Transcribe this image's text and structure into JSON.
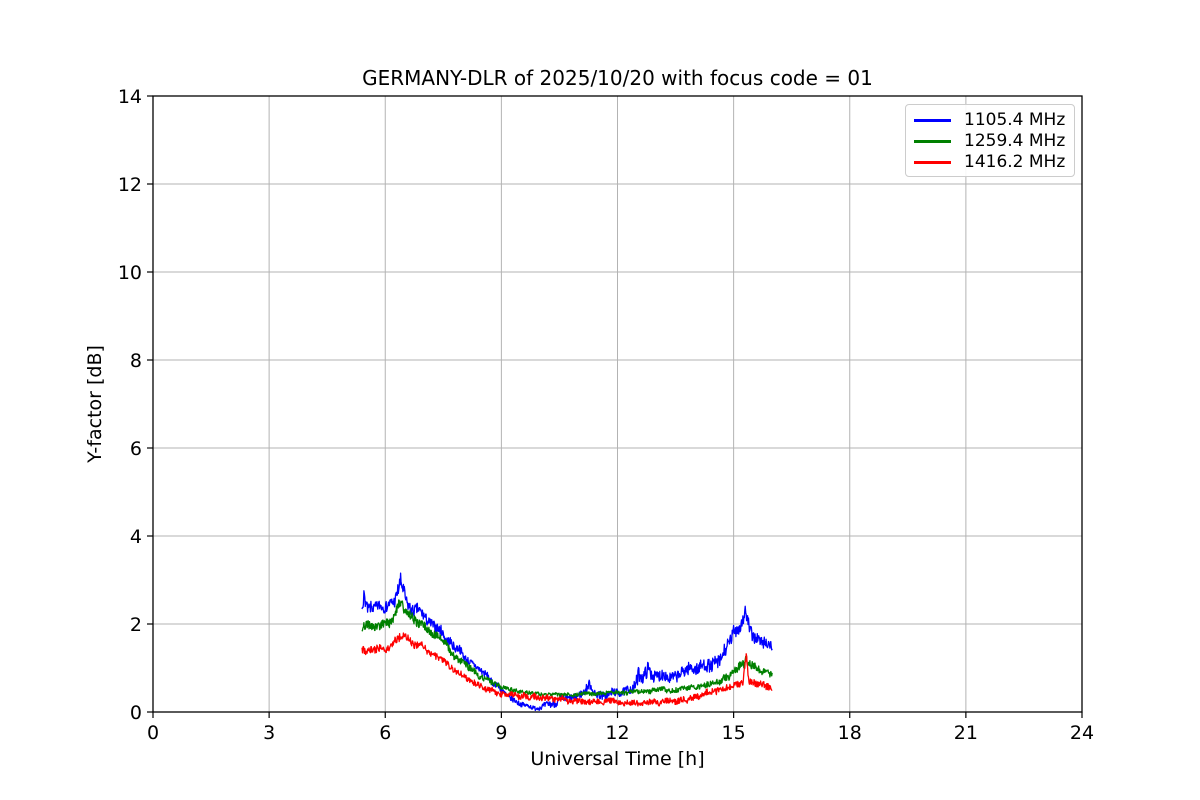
{
  "chart_data": {
    "type": "line",
    "title": "GERMANY-DLR of 2025/10/20 with focus code = 01",
    "xlabel": "Universal Time [h]",
    "ylabel": "Y-factor [dB]",
    "xlim": [
      0,
      24
    ],
    "ylim": [
      0,
      14
    ],
    "xticks": [
      0,
      3,
      6,
      9,
      12,
      15,
      18,
      21,
      24
    ],
    "yticks": [
      0,
      2,
      4,
      6,
      8,
      10,
      12,
      14
    ],
    "grid": true,
    "legend_position": "upper-right",
    "colors": {
      "background": "#ffffff",
      "grid": "#b3b3b3",
      "axis": "#000000",
      "legend_border": "#cccccc"
    },
    "keypoint_format": [
      "time_h",
      "y_factor_db",
      "noise_halfwidth_db"
    ],
    "series": [
      {
        "name": "1105.4 MHz",
        "color": "#0000ff",
        "keypoints": [
          [
            5.4,
            2.5,
            0.2
          ],
          [
            5.45,
            2.72,
            0.15
          ],
          [
            5.55,
            2.35,
            0.16
          ],
          [
            5.7,
            2.3,
            0.15
          ],
          [
            5.85,
            2.42,
            0.15
          ],
          [
            6.0,
            2.38,
            0.15
          ],
          [
            6.1,
            2.46,
            0.15
          ],
          [
            6.25,
            2.56,
            0.17
          ],
          [
            6.4,
            2.95,
            0.24
          ],
          [
            6.47,
            2.72,
            0.2
          ],
          [
            6.55,
            2.5,
            0.17
          ],
          [
            6.7,
            2.35,
            0.16
          ],
          [
            6.85,
            2.3,
            0.16
          ],
          [
            7.0,
            2.2,
            0.15
          ],
          [
            7.15,
            2.05,
            0.14
          ],
          [
            7.3,
            1.95,
            0.14
          ],
          [
            7.45,
            1.85,
            0.13
          ],
          [
            7.6,
            1.62,
            0.12
          ],
          [
            7.75,
            1.5,
            0.12
          ],
          [
            7.9,
            1.42,
            0.11
          ],
          [
            8.1,
            1.22,
            0.11
          ],
          [
            8.3,
            1.1,
            0.1
          ],
          [
            8.5,
            0.92,
            0.1
          ],
          [
            8.7,
            0.75,
            0.09
          ],
          [
            8.9,
            0.58,
            0.09
          ],
          [
            9.05,
            0.45,
            0.08
          ],
          [
            9.2,
            0.32,
            0.08
          ],
          [
            9.4,
            0.2,
            0.07
          ],
          [
            9.6,
            0.13,
            0.06
          ],
          [
            9.8,
            0.11,
            0.06
          ],
          [
            10.0,
            0.12,
            0.07
          ],
          [
            10.3,
            0.22,
            0.1
          ],
          [
            10.6,
            0.3,
            0.12
          ],
          [
            10.9,
            0.33,
            0.11
          ],
          [
            11.1,
            0.38,
            0.1
          ],
          [
            11.28,
            0.62,
            0.13
          ],
          [
            11.42,
            0.42,
            0.1
          ],
          [
            11.6,
            0.4,
            0.11
          ],
          [
            11.8,
            0.42,
            0.11
          ],
          [
            12.0,
            0.45,
            0.11
          ],
          [
            12.2,
            0.48,
            0.11
          ],
          [
            12.4,
            0.55,
            0.12
          ],
          [
            12.55,
            0.9,
            0.22
          ],
          [
            12.65,
            0.7,
            0.14
          ],
          [
            12.8,
            0.95,
            0.22
          ],
          [
            12.95,
            0.75,
            0.15
          ],
          [
            13.1,
            0.8,
            0.17
          ],
          [
            13.3,
            0.82,
            0.17
          ],
          [
            13.5,
            0.78,
            0.15
          ],
          [
            13.7,
            0.85,
            0.17
          ],
          [
            13.9,
            0.95,
            0.17
          ],
          [
            14.1,
            0.95,
            0.17
          ],
          [
            14.3,
            1.0,
            0.18
          ],
          [
            14.5,
            1.05,
            0.18
          ],
          [
            14.7,
            1.3,
            0.2
          ],
          [
            14.9,
            1.6,
            0.2
          ],
          [
            15.05,
            1.85,
            0.2
          ],
          [
            15.2,
            1.95,
            0.22
          ],
          [
            15.3,
            2.22,
            0.18
          ],
          [
            15.42,
            1.8,
            0.18
          ],
          [
            15.55,
            1.65,
            0.17
          ],
          [
            15.7,
            1.6,
            0.17
          ],
          [
            15.85,
            1.55,
            0.17
          ],
          [
            16.0,
            1.45,
            0.16
          ]
        ]
      },
      {
        "name": "1259.4 MHz",
        "color": "#008000",
        "keypoints": [
          [
            5.4,
            1.97,
            0.12
          ],
          [
            5.6,
            1.94,
            0.11
          ],
          [
            5.8,
            2.0,
            0.11
          ],
          [
            6.0,
            2.02,
            0.11
          ],
          [
            6.2,
            2.1,
            0.13
          ],
          [
            6.4,
            2.52,
            0.16
          ],
          [
            6.5,
            2.32,
            0.14
          ],
          [
            6.65,
            2.15,
            0.13
          ],
          [
            6.8,
            2.02,
            0.12
          ],
          [
            7.0,
            1.95,
            0.11
          ],
          [
            7.2,
            1.8,
            0.11
          ],
          [
            7.35,
            1.72,
            0.11
          ],
          [
            7.55,
            1.55,
            0.1
          ],
          [
            7.75,
            1.33,
            0.1
          ],
          [
            7.95,
            1.18,
            0.09
          ],
          [
            8.15,
            1.02,
            0.09
          ],
          [
            8.35,
            0.88,
            0.08
          ],
          [
            8.55,
            0.76,
            0.08
          ],
          [
            8.8,
            0.63,
            0.07
          ],
          [
            9.0,
            0.56,
            0.06
          ],
          [
            9.25,
            0.5,
            0.06
          ],
          [
            9.5,
            0.46,
            0.05
          ],
          [
            9.8,
            0.42,
            0.05
          ],
          [
            10.2,
            0.4,
            0.05
          ],
          [
            10.6,
            0.39,
            0.05
          ],
          [
            11.0,
            0.4,
            0.05
          ],
          [
            11.4,
            0.41,
            0.05
          ],
          [
            11.8,
            0.43,
            0.05
          ],
          [
            12.2,
            0.44,
            0.06
          ],
          [
            12.6,
            0.46,
            0.06
          ],
          [
            13.0,
            0.49,
            0.06
          ],
          [
            13.4,
            0.5,
            0.07
          ],
          [
            13.8,
            0.53,
            0.07
          ],
          [
            14.1,
            0.57,
            0.08
          ],
          [
            14.4,
            0.63,
            0.08
          ],
          [
            14.7,
            0.72,
            0.09
          ],
          [
            14.9,
            0.82,
            0.09
          ],
          [
            15.1,
            0.95,
            0.11
          ],
          [
            15.3,
            1.18,
            0.16
          ],
          [
            15.45,
            1.08,
            0.11
          ],
          [
            15.6,
            1.0,
            0.1
          ],
          [
            15.8,
            0.92,
            0.09
          ],
          [
            16.0,
            0.85,
            0.09
          ]
        ]
      },
      {
        "name": "1416.2 MHz",
        "color": "#ff0000",
        "keypoints": [
          [
            5.4,
            1.38,
            0.11
          ],
          [
            5.6,
            1.42,
            0.1
          ],
          [
            5.8,
            1.45,
            0.1
          ],
          [
            6.0,
            1.47,
            0.1
          ],
          [
            6.2,
            1.52,
            0.1
          ],
          [
            6.4,
            1.77,
            0.11
          ],
          [
            6.52,
            1.69,
            0.1
          ],
          [
            6.65,
            1.6,
            0.1
          ],
          [
            6.8,
            1.52,
            0.1
          ],
          [
            7.0,
            1.48,
            0.09
          ],
          [
            7.2,
            1.35,
            0.09
          ],
          [
            7.4,
            1.22,
            0.09
          ],
          [
            7.6,
            1.08,
            0.09
          ],
          [
            7.8,
            0.95,
            0.08
          ],
          [
            8.0,
            0.86,
            0.08
          ],
          [
            8.2,
            0.72,
            0.08
          ],
          [
            8.4,
            0.62,
            0.08
          ],
          [
            8.6,
            0.52,
            0.08
          ],
          [
            8.85,
            0.46,
            0.08
          ],
          [
            9.1,
            0.42,
            0.08
          ],
          [
            9.4,
            0.38,
            0.08
          ],
          [
            9.7,
            0.34,
            0.08
          ],
          [
            10.0,
            0.32,
            0.08
          ],
          [
            10.4,
            0.29,
            0.08
          ],
          [
            10.8,
            0.27,
            0.08
          ],
          [
            11.2,
            0.25,
            0.08
          ],
          [
            11.6,
            0.24,
            0.08
          ],
          [
            12.0,
            0.23,
            0.08
          ],
          [
            12.5,
            0.22,
            0.08
          ],
          [
            13.0,
            0.22,
            0.08
          ],
          [
            13.4,
            0.25,
            0.08
          ],
          [
            13.8,
            0.3,
            0.08
          ],
          [
            14.1,
            0.36,
            0.09
          ],
          [
            14.4,
            0.45,
            0.09
          ],
          [
            14.7,
            0.55,
            0.09
          ],
          [
            14.9,
            0.6,
            0.09
          ],
          [
            15.1,
            0.63,
            0.09
          ],
          [
            15.25,
            0.67,
            0.09
          ],
          [
            15.32,
            1.28,
            0.14
          ],
          [
            15.4,
            0.68,
            0.09
          ],
          [
            15.6,
            0.63,
            0.09
          ],
          [
            15.8,
            0.6,
            0.09
          ],
          [
            16.0,
            0.57,
            0.09
          ]
        ]
      }
    ]
  }
}
